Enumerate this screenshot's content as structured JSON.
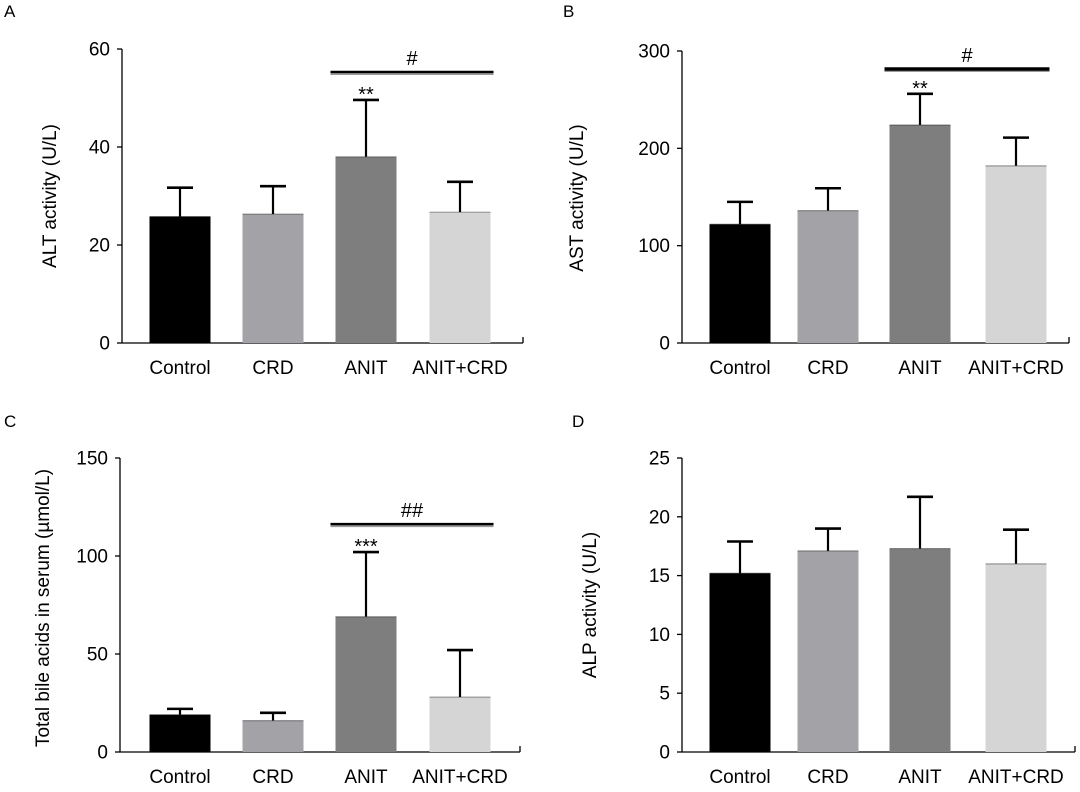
{
  "figure": {
    "panel_letters": [
      "A",
      "B",
      "C",
      "D"
    ]
  },
  "colors": {
    "Control": "#000000",
    "CRD": "#a3a3a7",
    "ANIT": "#7e7e7e",
    "ANIT+CRD": "#d5d5d5",
    "axis": "#000000"
  },
  "chart_data": [
    {
      "type": "bar",
      "panel": "A",
      "title": "",
      "xlabel": "",
      "ylabel": "ALT activity (U/L)",
      "categories": [
        "Control",
        "CRD",
        "ANIT",
        "ANIT+CRD"
      ],
      "values": [
        25.8,
        26.3,
        38.0,
        26.7
      ],
      "errors": [
        5.9,
        5.7,
        11.6,
        6.2
      ],
      "ylim": [
        0,
        60
      ],
      "yticks": [
        0,
        20,
        40,
        60
      ],
      "star_labels": [
        {
          "category": "ANIT",
          "text": "**"
        }
      ],
      "comparisons": [
        {
          "from": "ANIT",
          "to": "ANIT+CRD",
          "text": "#"
        }
      ]
    },
    {
      "type": "bar",
      "panel": "B",
      "title": "",
      "xlabel": "",
      "ylabel": "AST activity (U/L)",
      "categories": [
        "Control",
        "CRD",
        "ANIT",
        "ANIT+CRD"
      ],
      "values": [
        122,
        136,
        224,
        182
      ],
      "errors": [
        23,
        23,
        32,
        29
      ],
      "ylim": [
        0,
        300
      ],
      "yticks": [
        0,
        100,
        200,
        300
      ],
      "star_labels": [
        {
          "category": "ANIT",
          "text": "**"
        }
      ],
      "comparisons": [
        {
          "from": "ANIT",
          "to": "ANIT+CRD",
          "text": "#"
        }
      ]
    },
    {
      "type": "bar",
      "panel": "C",
      "title": "",
      "xlabel": "",
      "ylabel": "Total bile acids in serum (µmol/L)",
      "categories": [
        "Control",
        "CRD",
        "ANIT",
        "ANIT+CRD"
      ],
      "values": [
        19,
        16,
        69,
        28
      ],
      "errors": [
        3,
        4,
        33,
        24
      ],
      "ylim": [
        0,
        150
      ],
      "yticks": [
        0,
        50,
        100,
        150
      ],
      "star_labels": [
        {
          "category": "ANIT",
          "text": "***"
        }
      ],
      "comparisons": [
        {
          "from": "ANIT",
          "to": "ANIT+CRD",
          "text": "##"
        }
      ]
    },
    {
      "type": "bar",
      "panel": "D",
      "title": "",
      "xlabel": "",
      "ylabel": "ALP activity (U/L)",
      "categories": [
        "Control",
        "CRD",
        "ANIT",
        "ANIT+CRD"
      ],
      "values": [
        15.2,
        17.1,
        17.3,
        16.0
      ],
      "errors": [
        2.7,
        1.9,
        4.4,
        2.9
      ],
      "ylim": [
        0,
        25
      ],
      "yticks": [
        0,
        5,
        10,
        15,
        20,
        25
      ],
      "star_labels": [],
      "comparisons": []
    }
  ]
}
